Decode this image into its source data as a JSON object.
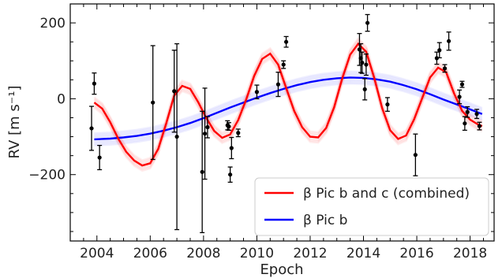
{
  "chart_data": {
    "type": "scatter",
    "xlabel": "Epoch",
    "ylabel": "RV [m s⁻¹]",
    "xlim": [
      2003.0,
      2018.9
    ],
    "ylim": [
      -375,
      250
    ],
    "xticks": [
      2004,
      2006,
      2008,
      2010,
      2012,
      2014,
      2016,
      2018
    ],
    "yticks": [
      -200,
      0,
      200
    ],
    "ytick_labels": [
      "−200",
      "0",
      "200"
    ],
    "legend_position": "lower-right",
    "series": [
      {
        "name": "β Pic b and c (combined)",
        "color": "#ff0000",
        "kind": "model",
        "x": [
          2003.9,
          2004.2,
          2004.5,
          2004.8,
          2005.1,
          2005.4,
          2005.7,
          2006.0,
          2006.3,
          2006.6,
          2006.9,
          2007.2,
          2007.5,
          2007.8,
          2008.1,
          2008.4,
          2008.7,
          2009.0,
          2009.3,
          2009.6,
          2009.9,
          2010.2,
          2010.5,
          2010.8,
          2011.1,
          2011.4,
          2011.7,
          2012.0,
          2012.3,
          2012.6,
          2012.9,
          2013.2,
          2013.5,
          2013.8,
          2014.1,
          2014.4,
          2014.7,
          2015.0,
          2015.3,
          2015.6,
          2015.9,
          2016.2,
          2016.5,
          2016.8,
          2017.1,
          2017.4,
          2017.7,
          2018.0,
          2018.3,
          2018.45
        ],
        "y": [
          -10,
          -26,
          -62,
          -105,
          -140,
          -163,
          -176,
          -170,
          -132,
          -65,
          8,
          34,
          26,
          -9,
          -50,
          -85,
          -103,
          -94,
          -56,
          -2,
          60,
          105,
          119,
          90,
          28,
          -32,
          -75,
          -100,
          -102,
          -77,
          -22,
          53,
          116,
          145,
          124,
          56,
          -25,
          -83,
          -106,
          -97,
          -54,
          1,
          56,
          82,
          70,
          14,
          -32,
          -55,
          -68,
          -72
        ]
      },
      {
        "name": "β Pic b",
        "color": "#0000ff",
        "kind": "model",
        "x": [
          2003.9,
          2004.5,
          2005.0,
          2005.5,
          2006.0,
          2006.5,
          2007.0,
          2007.5,
          2008.0,
          2008.5,
          2009.0,
          2009.5,
          2010.0,
          2010.5,
          2011.0,
          2011.5,
          2012.0,
          2012.5,
          2013.0,
          2013.5,
          2014.0,
          2014.5,
          2015.0,
          2015.5,
          2016.0,
          2016.5,
          2017.0,
          2017.5,
          2018.0,
          2018.45
        ],
        "y": [
          -107,
          -105,
          -102,
          -98,
          -92,
          -84,
          -75,
          -64,
          -51,
          -37,
          -23,
          -10,
          3,
          15,
          26,
          36,
          44,
          50,
          54,
          56,
          55,
          51,
          45,
          36,
          25,
          12,
          -2,
          -15,
          -28,
          -40
        ]
      },
      {
        "kind": "data",
        "color": "#000000",
        "x": [
          2003.8,
          2003.9,
          2004.1,
          2006.1,
          2006.9,
          2007.0,
          2007.95,
          2008.05,
          2008.15,
          2008.9,
          2008.95,
          2009.0,
          2009.05,
          2009.3,
          2010.0,
          2010.8,
          2011.0,
          2011.1,
          2013.85,
          2013.9,
          2013.95,
          2014.05,
          2014.1,
          2014.15,
          2014.9,
          2015.95,
          2016.75,
          2016.85,
          2017.05,
          2017.2,
          2017.6,
          2017.7,
          2017.8,
          2017.9,
          2018.25,
          2018.35
        ],
        "y": [
          -78,
          40,
          -155,
          -10,
          20,
          -100,
          -193,
          -92,
          -75,
          -70,
          -73,
          -200,
          -130,
          -90,
          18,
          38,
          90,
          150,
          130,
          107,
          95,
          25,
          90,
          200,
          -15,
          -148,
          107,
          128,
          80,
          152,
          5,
          38,
          -65,
          -35,
          -40,
          -72
        ],
        "err": [
          58,
          28,
          32,
          150,
          108,
          245,
          160,
          120,
          28,
          12,
          10,
          20,
          28,
          10,
          18,
          32,
          10,
          14,
          42,
          38,
          28,
          28,
          28,
          22,
          18,
          55,
          16,
          20,
          10,
          24,
          18,
          8,
          18,
          14,
          12,
          10
        ]
      }
    ]
  }
}
